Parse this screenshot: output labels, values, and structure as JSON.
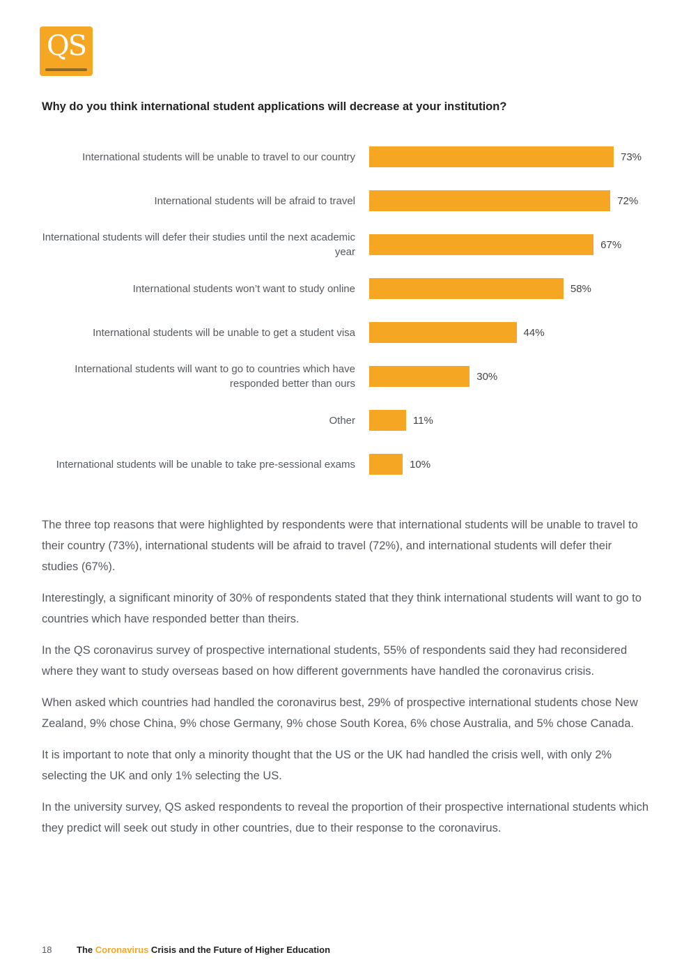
{
  "logo": {
    "text": "QS",
    "color": "#f5a623"
  },
  "question": "Why do you think international student applications will decrease at your institution?",
  "chart_data": {
    "type": "bar",
    "orientation": "horizontal",
    "bar_color": "#f5a623",
    "xlim": [
      0,
      100
    ],
    "categories": [
      "International students will be unable to travel to our country",
      "International students will be afraid to travel",
      "International students will defer their studies until the next academic year",
      "International students won’t want to study online",
      "International students will be unable to get a student visa",
      "International students will want to go to countries which have responded better than ours",
      "Other",
      "International students will be unable to take pre-sessional exams"
    ],
    "values": [
      73,
      72,
      67,
      58,
      44,
      30,
      11,
      10
    ],
    "value_labels": [
      "73%",
      "72%",
      "67%",
      "58%",
      "44%",
      "30%",
      "11%",
      "10%"
    ]
  },
  "body": {
    "paragraphs": [
      "The three top reasons that were highlighted by respondents were that international students will be unable to travel to their country (73%), international students will be afraid to travel (72%), and international students will defer their studies (67%).",
      "Interestingly, a significant minority of 30% of respondents stated that they think international students will want to go to countries which have responded better than theirs.",
      "In the QS coronavirus survey of prospective international students, 55% of respondents said they had reconsidered where they want to study overseas based on how different governments have handled the coronavirus crisis.",
      "When asked which countries had handled the coronavirus best, 29% of prospective international students chose New Zealand, 9% chose China, 9% chose Germany, 9% chose South Korea, 6% chose Australia, and 5% chose Canada.",
      "It is important to note that only a minority thought that the US or the UK had handled the crisis well, with only 2% selecting the UK and only 1% selecting the US.",
      "In the university survey, QS asked respondents to reveal the proportion of their prospective international students which they predict will seek out study in other countries, due to their response to the coronavirus."
    ]
  },
  "footer": {
    "page_number": "18",
    "title_prefix": "The ",
    "title_accent": "Coronavirus",
    "title_suffix": " Crisis and the Future of Higher Education"
  }
}
